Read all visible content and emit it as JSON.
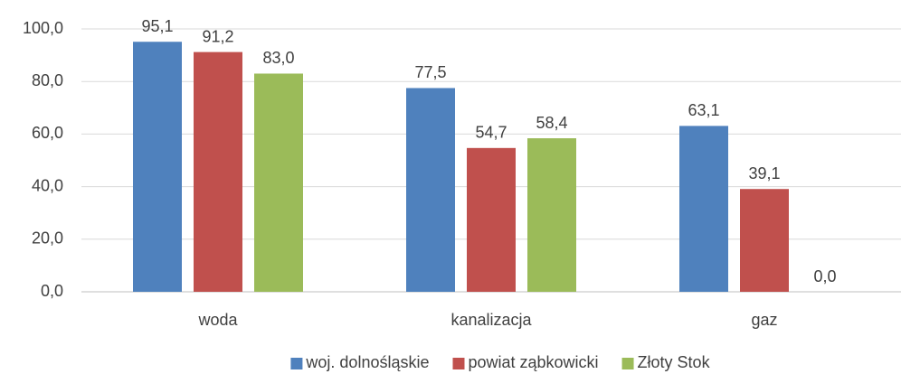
{
  "chart_data": {
    "type": "bar",
    "categories": [
      "woda",
      "kanalizacja",
      "gaz"
    ],
    "series": [
      {
        "name": "woj. dolnośląskie",
        "color": "#4f81bd",
        "values": [
          95.1,
          77.5,
          63.1
        ],
        "value_labels": [
          "95,1",
          "77,5",
          "63,1"
        ]
      },
      {
        "name": "powiat ząbkowicki",
        "color": "#c0504d",
        "values": [
          91.2,
          54.7,
          39.1
        ],
        "value_labels": [
          "91,2",
          "54,7",
          "39,1"
        ]
      },
      {
        "name": "Złoty Stok",
        "color": "#9bbb59",
        "values": [
          83.0,
          58.4,
          0.0
        ],
        "value_labels": [
          "83,0",
          "58,4",
          "0,0"
        ]
      }
    ],
    "ylim": [
      0,
      100
    ],
    "yticks": [
      {
        "value": 0,
        "label": "0,0"
      },
      {
        "value": 20,
        "label": "20,0"
      },
      {
        "value": 40,
        "label": "40,0"
      },
      {
        "value": 60,
        "label": "60,0"
      },
      {
        "value": 80,
        "label": "80,0"
      },
      {
        "value": 100,
        "label": "100,0"
      }
    ],
    "grid": true,
    "legend": "bottom"
  }
}
